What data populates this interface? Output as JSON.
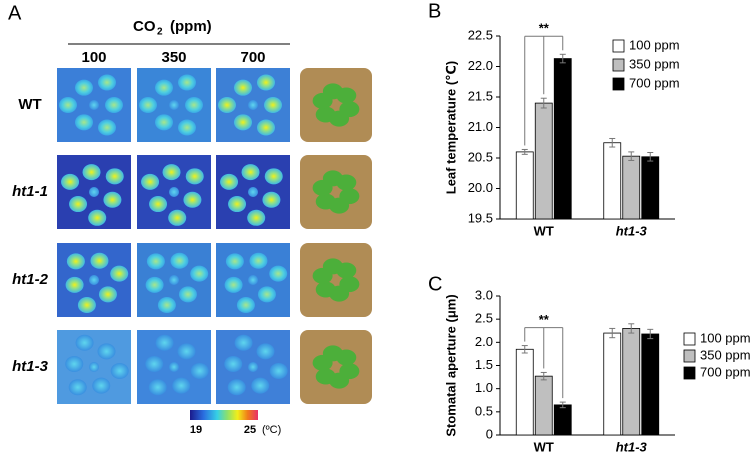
{
  "panel_a": {
    "panel_label": "A",
    "co2_label": {
      "main": "CO",
      "sub": "2",
      "unit": "(ppm)"
    },
    "columns": [
      "100",
      "350",
      "700"
    ],
    "rows": [
      "WT",
      "ht1-1",
      "ht1-2",
      "ht1-3"
    ],
    "colorbar": {
      "min": "19",
      "max": "25",
      "unit": "(ºC)"
    }
  },
  "chart_data": [
    {
      "type": "bar",
      "panel_label": "B",
      "y_label": "Leaf temperature (℃)",
      "categories": [
        "WT",
        "ht1-3"
      ],
      "series": [
        {
          "name": "100 ppm",
          "color": "#ffffff",
          "values": [
            20.6,
            20.75
          ],
          "errors": [
            0.04,
            0.07
          ]
        },
        {
          "name": "350 ppm",
          "color": "#bfbfbf",
          "values": [
            21.4,
            20.53
          ],
          "errors": [
            0.08,
            0.07
          ]
        },
        {
          "name": "700 ppm",
          "color": "#000000",
          "values": [
            22.13,
            20.52
          ],
          "errors": [
            0.07,
            0.07
          ]
        }
      ],
      "ylim": [
        19.5,
        22.5
      ],
      "yticks": [
        19.5,
        {
          "value": 20,
          "label": "20.0"
        },
        20.5,
        {
          "value": 21,
          "label": "21.0"
        },
        21.5,
        {
          "value": 22,
          "label": "22.0"
        },
        22.5
      ],
      "annotation": "**"
    },
    {
      "type": "bar",
      "panel_label": "C",
      "y_label": "Stomatal aperture (μm)",
      "categories": [
        "WT",
        "ht1-3"
      ],
      "series": [
        {
          "name": "100 ppm",
          "color": "#ffffff",
          "values": [
            1.85,
            2.2
          ],
          "errors": [
            0.08,
            0.1
          ]
        },
        {
          "name": "350 ppm",
          "color": "#bfbfbf",
          "values": [
            1.27,
            2.3
          ],
          "errors": [
            0.08,
            0.1
          ]
        },
        {
          "name": "700 ppm",
          "color": "#000000",
          "values": [
            0.65,
            2.18
          ],
          "errors": [
            0.06,
            0.1
          ]
        }
      ],
      "ylim": [
        0,
        3
      ],
      "yticks": [
        0,
        0.5,
        {
          "value": 1,
          "label": "1.0"
        },
        1.5,
        {
          "value": 2,
          "label": "2.0"
        },
        2.5,
        {
          "value": 3,
          "label": "3.0"
        }
      ],
      "annotation": "**"
    }
  ]
}
